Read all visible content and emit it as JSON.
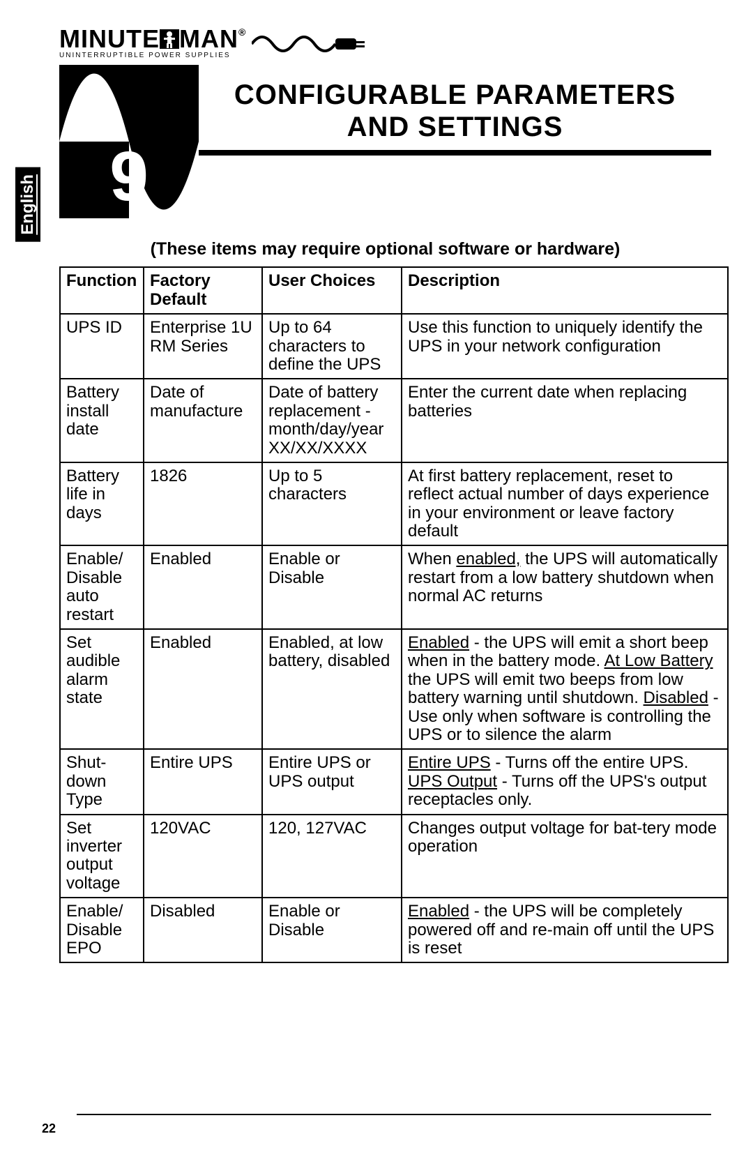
{
  "brand": {
    "name_part1": "MINUTE",
    "name_part2": "MAN",
    "registered": "®",
    "tagline": "UNINTERRUPTIBLE POWER SUPPLIES"
  },
  "side_tab": "English",
  "chapter": {
    "number": "9",
    "title_line1": "CONFIGURABLE PARAMETERS",
    "title_line2": "AND SETTINGS"
  },
  "note": "(These items may require optional software or hardware)",
  "table": {
    "headers": {
      "function": "Function",
      "factory_default": "Factory Default",
      "user_choices": "User Choices",
      "description": "Description"
    },
    "rows": [
      {
        "function": "UPS ID",
        "factory_default": "Enterprise 1U RM Series",
        "user_choices": "Up to 64 characters to define the UPS",
        "description_plain": "Use this function to uniquely identify the UPS in your network configuration"
      },
      {
        "function": "Battery install date",
        "factory_default": "Date of manufacture",
        "user_choices": "Date of battery replacement - month/day/year XX/XX/XXXX",
        "description_plain": "Enter the current date when replacing batteries"
      },
      {
        "function": "Battery life in days",
        "factory_default": "1826",
        "user_choices": "Up to 5 characters",
        "description_plain": "At first battery replacement, reset to reflect actual number of days experience in your environment or leave factory default"
      },
      {
        "function": "Enable/ Disable auto restart",
        "factory_default": "Enabled",
        "user_choices": "Enable or Disable",
        "description_html": "When <span class='u'>enabled,</span> the UPS will automatically restart from a low battery shutdown when normal AC returns"
      },
      {
        "function": "Set audible alarm state",
        "factory_default": "Enabled",
        "user_choices": "Enabled, at low battery, disabled",
        "description_html": "<span class='u'>Enabled</span> - the UPS will emit a short beep when in the battery mode. <span class='u'>At Low Battery</span>  the UPS will emit two beeps from low battery warning until shutdown. <span class='u'>Disabled</span> - Use only when software is controlling the UPS or to silence the alarm"
      },
      {
        "function": "Shut-down Type",
        "factory_default": "Entire UPS",
        "user_choices": "Entire UPS  or UPS output",
        "description_html": "<span class='u'>Entire UPS</span> - Turns off the entire UPS.<br><span class='u'>UPS Output</span> -  Turns off the UPS's output receptacles only."
      },
      {
        "function": "Set inverter output voltage",
        "factory_default": "120VAC",
        "user_choices": "120, 127VAC",
        "description_plain": "Changes output voltage for bat-tery mode operation"
      },
      {
        "function": "Enable/ Disable EPO",
        "factory_default": "Disabled",
        "user_choices": "Enable or Disable",
        "description_html": "<span class='u'>Enabled</span> - the UPS will be completely powered off and  re-main off until the UPS is reset"
      }
    ]
  },
  "page_number": "22"
}
